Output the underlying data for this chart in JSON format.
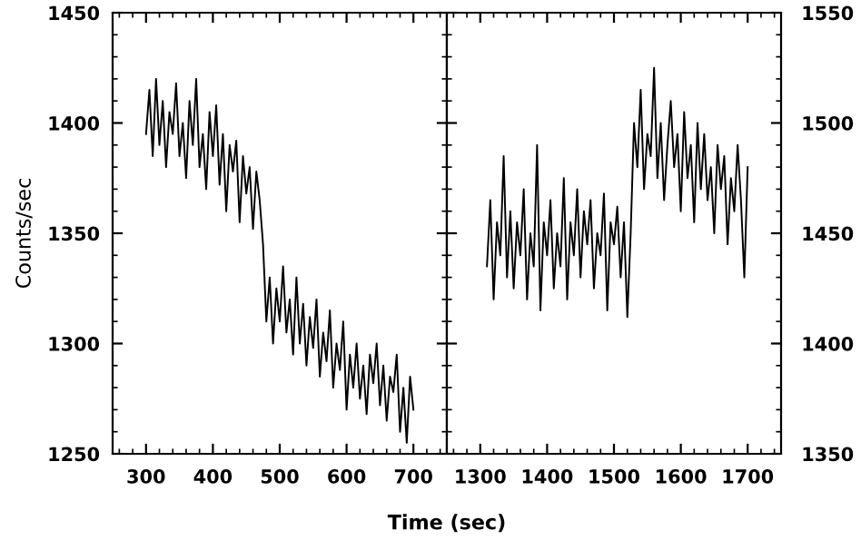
{
  "chart_data": [
    {
      "type": "line",
      "xlabel": "Time (sec)",
      "ylabel": "Counts/sec",
      "xlim": [
        250,
        750
      ],
      "xticks": [
        300,
        400,
        500,
        600,
        700
      ],
      "ylim": [
        1250,
        1450
      ],
      "yticks": [
        1250,
        1300,
        1350,
        1400,
        1450
      ],
      "grid": false,
      "legend": false,
      "series": [
        {
          "color": "#000000",
          "x": [
            300,
            305,
            310,
            315,
            320,
            325,
            330,
            335,
            340,
            345,
            350,
            355,
            360,
            365,
            370,
            375,
            380,
            385,
            390,
            395,
            400,
            405,
            410,
            415,
            420,
            425,
            430,
            435,
            440,
            445,
            450,
            455,
            460,
            465,
            470,
            475,
            480,
            485,
            490,
            495,
            500,
            505,
            510,
            515,
            520,
            525,
            530,
            535,
            540,
            545,
            550,
            555,
            560,
            565,
            570,
            575,
            580,
            585,
            590,
            595,
            600,
            605,
            610,
            615,
            620,
            625,
            630,
            635,
            640,
            645,
            650,
            655,
            660,
            665,
            670,
            675,
            680,
            685,
            690,
            695,
            700
          ],
          "values": [
            1395,
            1415,
            1385,
            1420,
            1390,
            1410,
            1380,
            1405,
            1395,
            1418,
            1385,
            1400,
            1375,
            1410,
            1390,
            1420,
            1380,
            1395,
            1370,
            1405,
            1385,
            1408,
            1372,
            1395,
            1360,
            1390,
            1378,
            1392,
            1355,
            1385,
            1368,
            1380,
            1352,
            1378,
            1365,
            1345,
            1310,
            1330,
            1300,
            1325,
            1310,
            1335,
            1305,
            1320,
            1295,
            1330,
            1300,
            1318,
            1290,
            1312,
            1298,
            1320,
            1285,
            1305,
            1292,
            1315,
            1280,
            1300,
            1288,
            1310,
            1270,
            1295,
            1280,
            1300,
            1275,
            1290,
            1268,
            1295,
            1282,
            1300,
            1272,
            1290,
            1265,
            1285,
            1278,
            1295,
            1260,
            1280,
            1255,
            1285,
            1270
          ]
        }
      ]
    },
    {
      "type": "line",
      "xlim": [
        1250,
        1750
      ],
      "xticks": [
        1300,
        1400,
        1500,
        1600,
        1700
      ],
      "y2lim": [
        1350,
        1550
      ],
      "y2ticks": [
        1350,
        1400,
        1450,
        1500,
        1550
      ],
      "grid": false,
      "legend": false,
      "series": [
        {
          "color": "#000000",
          "axis": "y2",
          "x": [
            1310,
            1315,
            1320,
            1325,
            1330,
            1335,
            1340,
            1345,
            1350,
            1355,
            1360,
            1365,
            1370,
            1375,
            1380,
            1385,
            1390,
            1395,
            1400,
            1405,
            1410,
            1415,
            1420,
            1425,
            1430,
            1435,
            1440,
            1445,
            1450,
            1455,
            1460,
            1465,
            1470,
            1475,
            1480,
            1485,
            1490,
            1495,
            1500,
            1505,
            1510,
            1515,
            1520,
            1525,
            1530,
            1535,
            1540,
            1545,
            1550,
            1555,
            1560,
            1565,
            1570,
            1575,
            1580,
            1585,
            1590,
            1595,
            1600,
            1605,
            1610,
            1615,
            1620,
            1625,
            1630,
            1635,
            1640,
            1645,
            1650,
            1655,
            1660,
            1665,
            1670,
            1675,
            1680,
            1685,
            1690,
            1695,
            1700
          ],
          "values": [
            1435,
            1465,
            1420,
            1455,
            1440,
            1485,
            1430,
            1460,
            1425,
            1455,
            1440,
            1470,
            1420,
            1450,
            1435,
            1490,
            1415,
            1455,
            1440,
            1465,
            1425,
            1450,
            1435,
            1475,
            1420,
            1455,
            1440,
            1470,
            1430,
            1460,
            1445,
            1465,
            1425,
            1450,
            1440,
            1468,
            1415,
            1455,
            1445,
            1462,
            1430,
            1455,
            1412,
            1450,
            1500,
            1480,
            1515,
            1470,
            1495,
            1485,
            1525,
            1475,
            1500,
            1465,
            1490,
            1510,
            1480,
            1495,
            1460,
            1505,
            1475,
            1490,
            1455,
            1500,
            1470,
            1495,
            1465,
            1480,
            1450,
            1490,
            1470,
            1485,
            1445,
            1475,
            1460,
            1490,
            1465,
            1430,
            1480
          ]
        }
      ]
    }
  ]
}
